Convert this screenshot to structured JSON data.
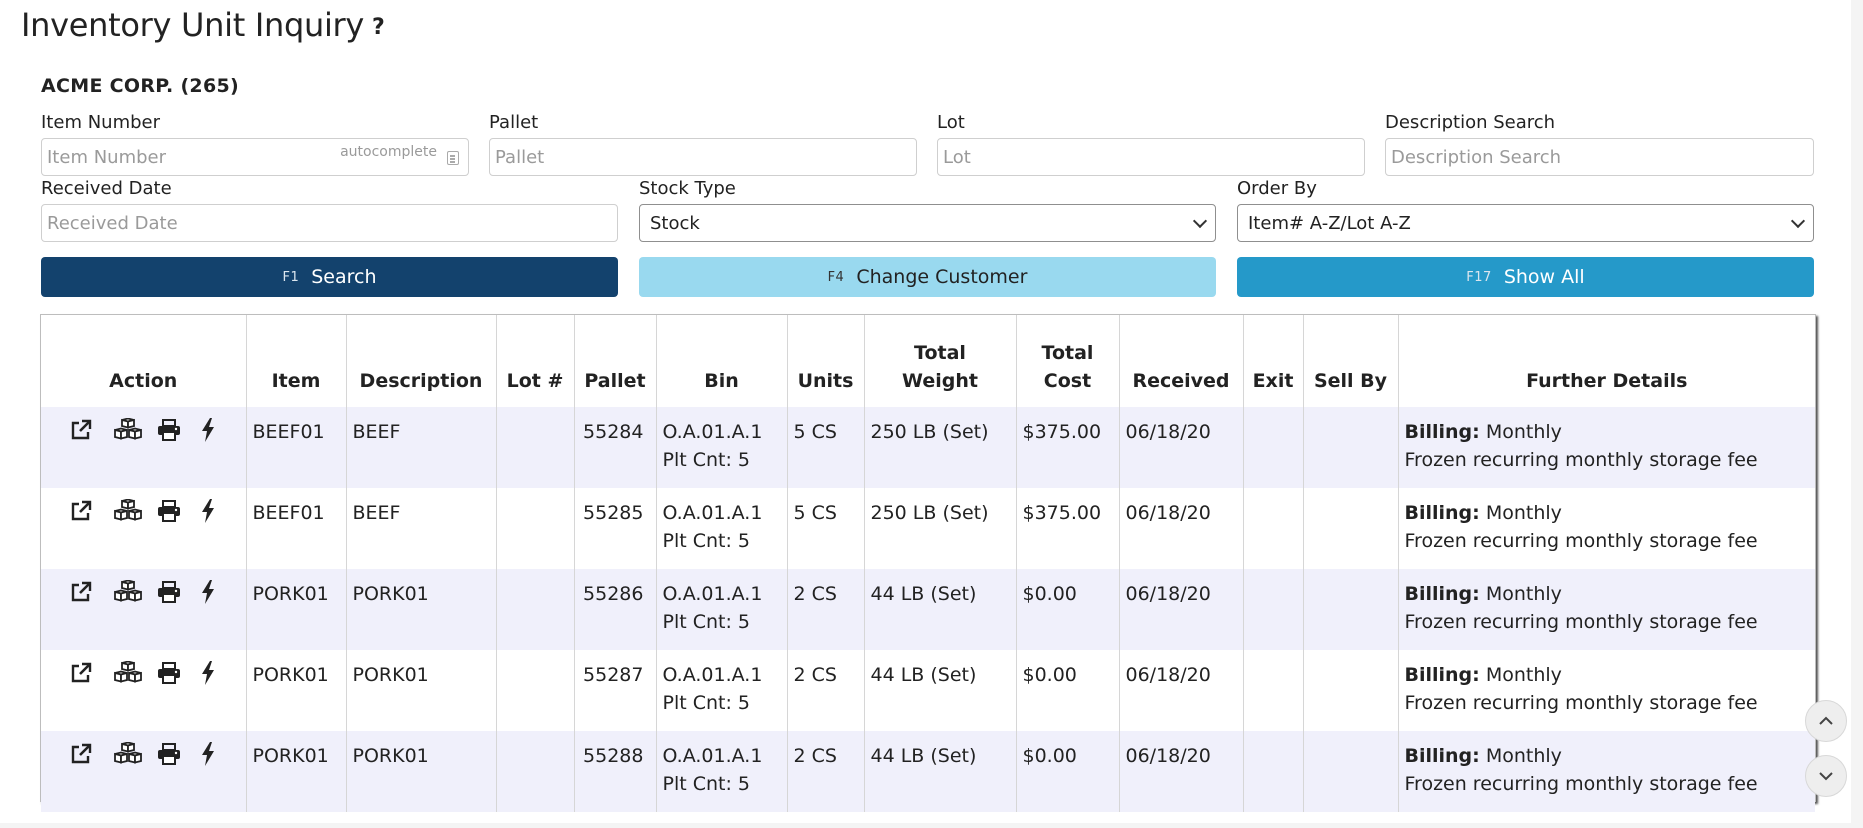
{
  "page": {
    "title": "Inventory Unit Inquiry",
    "help": "?",
    "customer": "ACME CORP. (265)"
  },
  "filters": {
    "item_number": {
      "label": "Item Number",
      "placeholder": "Item Number",
      "hint": "autocomplete"
    },
    "pallet": {
      "label": "Pallet",
      "placeholder": "Pallet"
    },
    "lot": {
      "label": "Lot",
      "placeholder": "Lot"
    },
    "description": {
      "label": "Description Search",
      "placeholder": "Description Search"
    },
    "received_date": {
      "label": "Received Date",
      "placeholder": "Received Date"
    },
    "stock_type": {
      "label": "Stock Type",
      "value": "Stock"
    },
    "order_by": {
      "label": "Order By",
      "value": "Item# A-Z/Lot A-Z"
    }
  },
  "buttons": {
    "search": {
      "key": "F1",
      "label": "Search"
    },
    "change_customer": {
      "key": "F4",
      "label": "Change Customer"
    },
    "show_all": {
      "key": "F17",
      "label": "Show All"
    }
  },
  "table": {
    "headers": {
      "action": "Action",
      "item": "Item",
      "description": "Description",
      "lot": "Lot #",
      "pallet": "Pallet",
      "bin": "Bin",
      "units": "Units",
      "total_weight_1": "Total",
      "total_weight_2": "Weight",
      "total_cost_1": "Total",
      "total_cost_2": "Cost",
      "received": "Received",
      "exit": "Exit",
      "sell_by": "Sell By",
      "further": "Further Details"
    },
    "rows": [
      {
        "item": "BEEF01",
        "description": "BEEF",
        "lot": "",
        "pallet": "55284",
        "bin": "O.A.01.A.1",
        "plt_cnt": "Plt Cnt: 5",
        "units": "5 CS",
        "weight": "250 LB (Set)",
        "cost": "$375.00",
        "received": "06/18/20",
        "exit": "",
        "sell_by": "",
        "billing_label": "Billing:",
        "billing": "Monthly",
        "detail": "Frozen recurring monthly storage fee"
      },
      {
        "item": "BEEF01",
        "description": "BEEF",
        "lot": "",
        "pallet": "55285",
        "bin": "O.A.01.A.1",
        "plt_cnt": "Plt Cnt: 5",
        "units": "5 CS",
        "weight": "250 LB (Set)",
        "cost": "$375.00",
        "received": "06/18/20",
        "exit": "",
        "sell_by": "",
        "billing_label": "Billing:",
        "billing": "Monthly",
        "detail": "Frozen recurring monthly storage fee"
      },
      {
        "item": "PORK01",
        "description": "PORK01",
        "lot": "",
        "pallet": "55286",
        "bin": "O.A.01.A.1",
        "plt_cnt": "Plt Cnt: 5",
        "units": "2 CS",
        "weight": "44 LB (Set)",
        "cost": "$0.00",
        "received": "06/18/20",
        "exit": "",
        "sell_by": "",
        "billing_label": "Billing:",
        "billing": "Monthly",
        "detail": "Frozen recurring monthly storage fee"
      },
      {
        "item": "PORK01",
        "description": "PORK01",
        "lot": "",
        "pallet": "55287",
        "bin": "O.A.01.A.1",
        "plt_cnt": "Plt Cnt: 5",
        "units": "2 CS",
        "weight": "44 LB (Set)",
        "cost": "$0.00",
        "received": "06/18/20",
        "exit": "",
        "sell_by": "",
        "billing_label": "Billing:",
        "billing": "Monthly",
        "detail": "Frozen recurring monthly storage fee"
      },
      {
        "item": "PORK01",
        "description": "PORK01",
        "lot": "",
        "pallet": "55288",
        "bin": "O.A.01.A.1",
        "plt_cnt": "Plt Cnt: 5",
        "units": "2 CS",
        "weight": "44 LB (Set)",
        "cost": "$0.00",
        "received": "06/18/20",
        "exit": "",
        "sell_by": "",
        "billing_label": "Billing:",
        "billing": "Monthly",
        "detail": "Frozen recurring monthly storage fee"
      }
    ],
    "row_action_icons": [
      "external-link-icon",
      "boxes-icon",
      "print-icon",
      "bolt-icon"
    ]
  },
  "scroll": {
    "up_icon": "chevron-up-icon",
    "down_icon": "chevron-down-icon"
  }
}
